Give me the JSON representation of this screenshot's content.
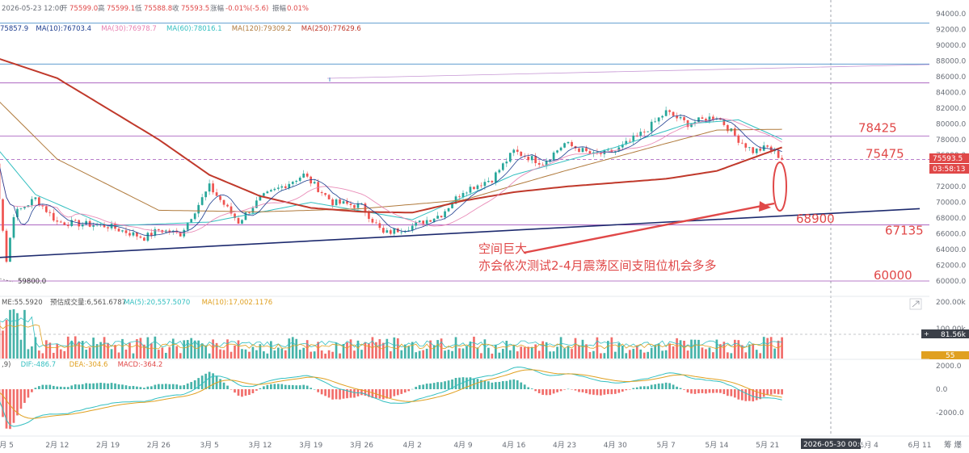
{
  "ohlc_bar": {
    "date": "2026-05-23 12:00",
    "open_label": "开",
    "open": "75599.0",
    "high_label": "高",
    "high": "75599.1",
    "low_label": "低",
    "low": "75588.8",
    "close_label": "收",
    "close": "75593.5",
    "change_label": "涨幅",
    "change": "-0.01%(-5.6)",
    "amplitude_label": "振幅",
    "amplitude": "0.01%"
  },
  "ma_legend": [
    {
      "text": "75857.9",
      "color": "#1d3d8f"
    },
    {
      "text": "MA(10):76703.4",
      "color": "#1d3d8f"
    },
    {
      "text": "MA(30):76978.7",
      "color": "#e77fb0"
    },
    {
      "text": "MA(60):78016.1",
      "color": "#33bfc0"
    },
    {
      "text": "MA(120):79309.2",
      "color": "#b07a3c"
    },
    {
      "text": "MA(250):77629.6",
      "color": "#c0392b"
    }
  ],
  "volume_legend": [
    {
      "text": "ME:55.5920",
      "color": "#555555"
    },
    {
      "text": "预估成交量:6,561.6787",
      "color": "#555555"
    },
    {
      "text": "MA(5):20,557.5070",
      "color": "#33bfc0"
    },
    {
      "text": "MA(10):17,002.1176",
      "color": "#e0a020"
    }
  ],
  "macd_legend": [
    {
      "text": ",9)",
      "color": "#555555"
    },
    {
      "text": "DIF:-486.7",
      "color": "#33bfc0"
    },
    {
      "text": "DEA:-304.6",
      "color": "#e0a020"
    },
    {
      "text": "MACD:-364.2",
      "color": "#e04848"
    }
  ],
  "annotation": {
    "line1": "空间巨大",
    "line2": "亦会依次测试2-4月震荡区间支阻位机会多多"
  },
  "price_badge": {
    "price": "75593.5",
    "countdown": "03:58:13"
  },
  "volume_badge": "81.56k",
  "volume_badge2": "55",
  "crosshair_date": "2026-05-30 00:00",
  "low_marker": "59800.0",
  "bottom_right": "筹 爆",
  "chart_data": {
    "type": "candlestick",
    "title": "",
    "xlabel": "",
    "ylabel": "",
    "x_ticks": [
      "月 5",
      "2月 12",
      "2月 19",
      "2月 26",
      "3月 5",
      "3月 12",
      "3月 19",
      "3月 26",
      "4月 2",
      "4月 9",
      "4月 16",
      "4月 23",
      "4月 30",
      "5月 7",
      "5月 14",
      "5月 21",
      "5月 28",
      "6月 4",
      "6月 11"
    ],
    "x_tick_values": [
      "2026-02-05",
      "2026-02-12",
      "2026-02-19",
      "2026-02-26",
      "2026-03-05",
      "2026-03-12",
      "2026-03-19",
      "2026-03-26",
      "2026-04-02",
      "2026-04-09",
      "2026-04-16",
      "2026-04-23",
      "2026-04-30",
      "2026-05-07",
      "2026-05-14",
      "2026-05-21",
      "2026-05-28",
      "2026-06-04",
      "2026-06-11"
    ],
    "y_ticks": [
      "94000.0",
      "92000.0",
      "90000.0",
      "88000.0",
      "86000.0",
      "84000.0",
      "82000.0",
      "80000.0",
      "78000.0",
      "76000.0",
      "74000.0",
      "72000.0",
      "70000.0",
      "68000.0",
      "66000.0",
      "64000.0",
      "62000.0",
      "60000.0"
    ],
    "ylim": [
      59000,
      95000
    ],
    "close_anchors": [
      {
        "date": "2026-02-03",
        "close": 79000
      },
      {
        "date": "2026-02-05",
        "close": 62500
      },
      {
        "date": "2026-02-06",
        "close": 68500
      },
      {
        "date": "2026-02-09",
        "close": 70500
      },
      {
        "date": "2026-02-12",
        "close": 67500
      },
      {
        "date": "2026-02-19",
        "close": 67000
      },
      {
        "date": "2026-02-24",
        "close": 65500
      },
      {
        "date": "2026-02-26",
        "close": 66500
      },
      {
        "date": "2026-03-01",
        "close": 66000
      },
      {
        "date": "2026-03-05",
        "close": 72000
      },
      {
        "date": "2026-03-09",
        "close": 67500
      },
      {
        "date": "2026-03-12",
        "close": 70500
      },
      {
        "date": "2026-03-18",
        "close": 73500
      },
      {
        "date": "2026-03-22",
        "close": 70000
      },
      {
        "date": "2026-03-26",
        "close": 69500
      },
      {
        "date": "2026-03-29",
        "close": 66000
      },
      {
        "date": "2026-04-02",
        "close": 67000
      },
      {
        "date": "2026-04-06",
        "close": 68500
      },
      {
        "date": "2026-04-09",
        "close": 71500
      },
      {
        "date": "2026-04-13",
        "close": 73000
      },
      {
        "date": "2026-04-16",
        "close": 76500
      },
      {
        "date": "2026-04-20",
        "close": 75000
      },
      {
        "date": "2026-04-23",
        "close": 77500
      },
      {
        "date": "2026-04-27",
        "close": 76000
      },
      {
        "date": "2026-04-30",
        "close": 76500
      },
      {
        "date": "2026-05-04",
        "close": 79000
      },
      {
        "date": "2026-05-07",
        "close": 81500
      },
      {
        "date": "2026-05-10",
        "close": 80000
      },
      {
        "date": "2026-05-14",
        "close": 81000
      },
      {
        "date": "2026-05-17",
        "close": 78000
      },
      {
        "date": "2026-05-19",
        "close": 76500
      },
      {
        "date": "2026-05-21",
        "close": 77000
      },
      {
        "date": "2026-05-23",
        "close": 75593.5
      }
    ],
    "ma250_points": [
      {
        "date": "2026-01-31",
        "value": 89500
      },
      {
        "date": "2026-02-12",
        "value": 85800
      },
      {
        "date": "2026-02-26",
        "value": 78000
      },
      {
        "date": "2026-03-05",
        "value": 73500
      },
      {
        "date": "2026-03-12",
        "value": 70800
      },
      {
        "date": "2026-03-19",
        "value": 69300
      },
      {
        "date": "2026-03-26",
        "value": 68800
      },
      {
        "date": "2026-04-02",
        "value": 68700
      },
      {
        "date": "2026-04-09",
        "value": 70200
      },
      {
        "date": "2026-04-16",
        "value": 71300
      },
      {
        "date": "2026-04-23",
        "value": 72000
      },
      {
        "date": "2026-04-30",
        "value": 72500
      },
      {
        "date": "2026-05-07",
        "value": 73000
      },
      {
        "date": "2026-05-14",
        "value": 74000
      },
      {
        "date": "2026-05-23",
        "value": 77000
      }
    ],
    "ma120_points": [
      {
        "date": "2026-01-31",
        "value": 86500
      },
      {
        "date": "2026-02-12",
        "value": 75500
      },
      {
        "date": "2026-02-26",
        "value": 69000
      },
      {
        "date": "2026-03-12",
        "value": 68800
      },
      {
        "date": "2026-03-26",
        "value": 69200
      },
      {
        "date": "2026-04-09",
        "value": 70300
      },
      {
        "date": "2026-04-23",
        "value": 74000
      },
      {
        "date": "2026-05-07",
        "value": 77500
      },
      {
        "date": "2026-05-14",
        "value": 79200
      },
      {
        "date": "2026-05-23",
        "value": 79300
      }
    ],
    "ma60_points": [
      {
        "date": "2026-01-31",
        "value": 81000
      },
      {
        "date": "2026-02-09",
        "value": 71000
      },
      {
        "date": "2026-02-19",
        "value": 67000
      },
      {
        "date": "2026-03-05",
        "value": 67500
      },
      {
        "date": "2026-03-19",
        "value": 70000
      },
      {
        "date": "2026-04-02",
        "value": 67800
      },
      {
        "date": "2026-04-16",
        "value": 73500
      },
      {
        "date": "2026-04-30",
        "value": 77000
      },
      {
        "date": "2026-05-10",
        "value": 80000
      },
      {
        "date": "2026-05-17",
        "value": 80500
      },
      {
        "date": "2026-05-23",
        "value": 78016.1
      }
    ],
    "trendline": {
      "from": {
        "date": "2026-01-31",
        "value": 62800
      },
      "to": {
        "date": "2026-06-11",
        "value": 69200
      }
    },
    "horizontal_levels": [
      {
        "value": 92800,
        "color": "#4a8fc8"
      },
      {
        "value": 87600,
        "color": "#4a8fc8"
      },
      {
        "value": 85200,
        "color": "#a050b8"
      },
      {
        "value": 78425,
        "color": "#a050b8",
        "label": "78425"
      },
      {
        "value": 75475,
        "color": "#a050b8",
        "dashed": true,
        "label": "75475"
      },
      {
        "value": 67135,
        "color": "#a050b8",
        "label": "67135"
      },
      {
        "value": 60000,
        "color": "#a050b8",
        "label": "60000"
      }
    ],
    "level_label_68900": "68900",
    "volume_axis": [
      "200.00k",
      "100.00k"
    ],
    "macd_axis": [
      "2000.0",
      "0.0",
      "-2000.0"
    ]
  }
}
